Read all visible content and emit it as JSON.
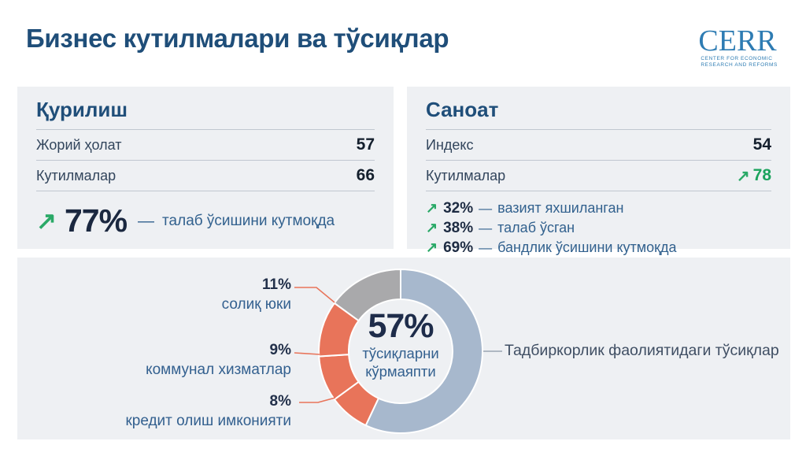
{
  "title": "Бизнес кутилмалари ва тўсиқлар",
  "logo": {
    "name": "CERR",
    "subtitle_line1": "CENTER FOR ECONOMIC",
    "subtitle_line2": "RESEARCH AND REFORMS"
  },
  "icons": {
    "trend_up": "↗"
  },
  "misc": {
    "dash": "—"
  },
  "panels": {
    "construction": {
      "title": "Қурилиш",
      "rows": [
        {
          "label": "Жорий ҳолат",
          "value": "57"
        },
        {
          "label": "Кутилмалар",
          "value": "66"
        }
      ],
      "highlight": {
        "percent": "77%",
        "text": "талаб ўсишини кутмоқда"
      }
    },
    "industry": {
      "title": "Саноат",
      "rows": [
        {
          "label": "Индекс",
          "value": "54"
        },
        {
          "label": "Кутилмалар",
          "value": "78"
        }
      ],
      "stats": [
        {
          "percent": "32%",
          "text": "вазият яхшиланган"
        },
        {
          "percent": "38%",
          "text": "талаб ўсган"
        },
        {
          "percent": "69%",
          "text": "бандлик ўсишини кутмоқда"
        }
      ]
    }
  },
  "chart_data": {
    "type": "pie",
    "subtype": "donut",
    "title": "Тадбиркорлик фаолиятидаги тўсиқлар",
    "center": {
      "percent": "57%",
      "label_line1": "тўсиқларни",
      "label_line2": "кўрмаяпти"
    },
    "slices": [
      {
        "label": "тўсиқларни кўрмаяпти",
        "value": 57,
        "color": "#a7b8cd"
      },
      {
        "label": "кредит олиш имконияти",
        "value": 8,
        "color": "#e8745a"
      },
      {
        "label": "коммунал хизматлар",
        "value": 9,
        "color": "#e8745a"
      },
      {
        "label": "солиқ юки",
        "value": 11,
        "color": "#e8745a"
      },
      {
        "label": "",
        "value": 15,
        "color": "#a9a9ab"
      }
    ],
    "callouts": [
      {
        "percent": "11%",
        "label": "солиқ юки"
      },
      {
        "percent": "9%",
        "label": "коммунал хизматлар"
      },
      {
        "percent": "8%",
        "label": "кредит олиш имконияти"
      }
    ],
    "colors": {
      "obstacles": "#e8745a",
      "no_obstacles": "#a7b8cd",
      "other": "#a9a9ab"
    },
    "legend_position": "none"
  }
}
